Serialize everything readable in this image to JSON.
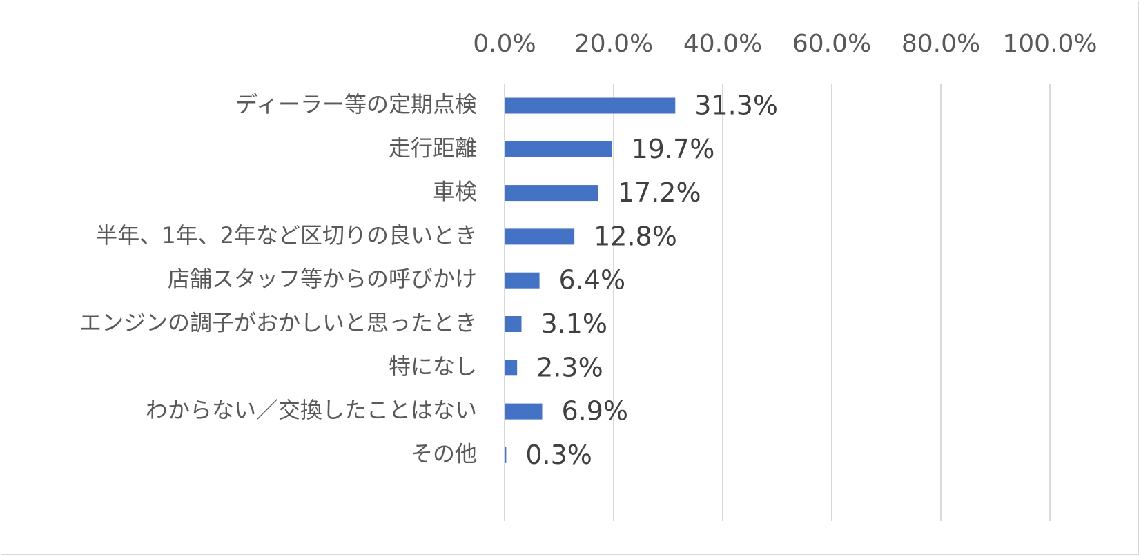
{
  "chart_data": {
    "type": "bar",
    "orientation": "horizontal",
    "categories": [
      "ディーラー等の定期点検",
      "走行距離",
      "車検",
      "半年、1年、2年など区切りの良いとき",
      "店舗スタッフ等からの呼びかけ",
      "エンジンの調子がおかしいと思ったとき",
      "特になし",
      "わからない／交換したことはない",
      "その他"
    ],
    "values": [
      31.3,
      19.7,
      17.2,
      12.8,
      6.4,
      3.1,
      2.3,
      6.9,
      0.3
    ],
    "data_labels": [
      "31.3%",
      "19.7%",
      "17.2%",
      "12.8%",
      "6.4%",
      "3.1%",
      "2.3%",
      "6.9%",
      "0.3%"
    ],
    "x_ticks": [
      "0.0%",
      "20.0%",
      "40.0%",
      "60.0%",
      "80.0%",
      "100.0%"
    ],
    "xlim": [
      0,
      100
    ],
    "axis_position": "top",
    "grid": "vertical",
    "bar_color": "#4472c4",
    "gridline_color": "#d9d9d9"
  }
}
